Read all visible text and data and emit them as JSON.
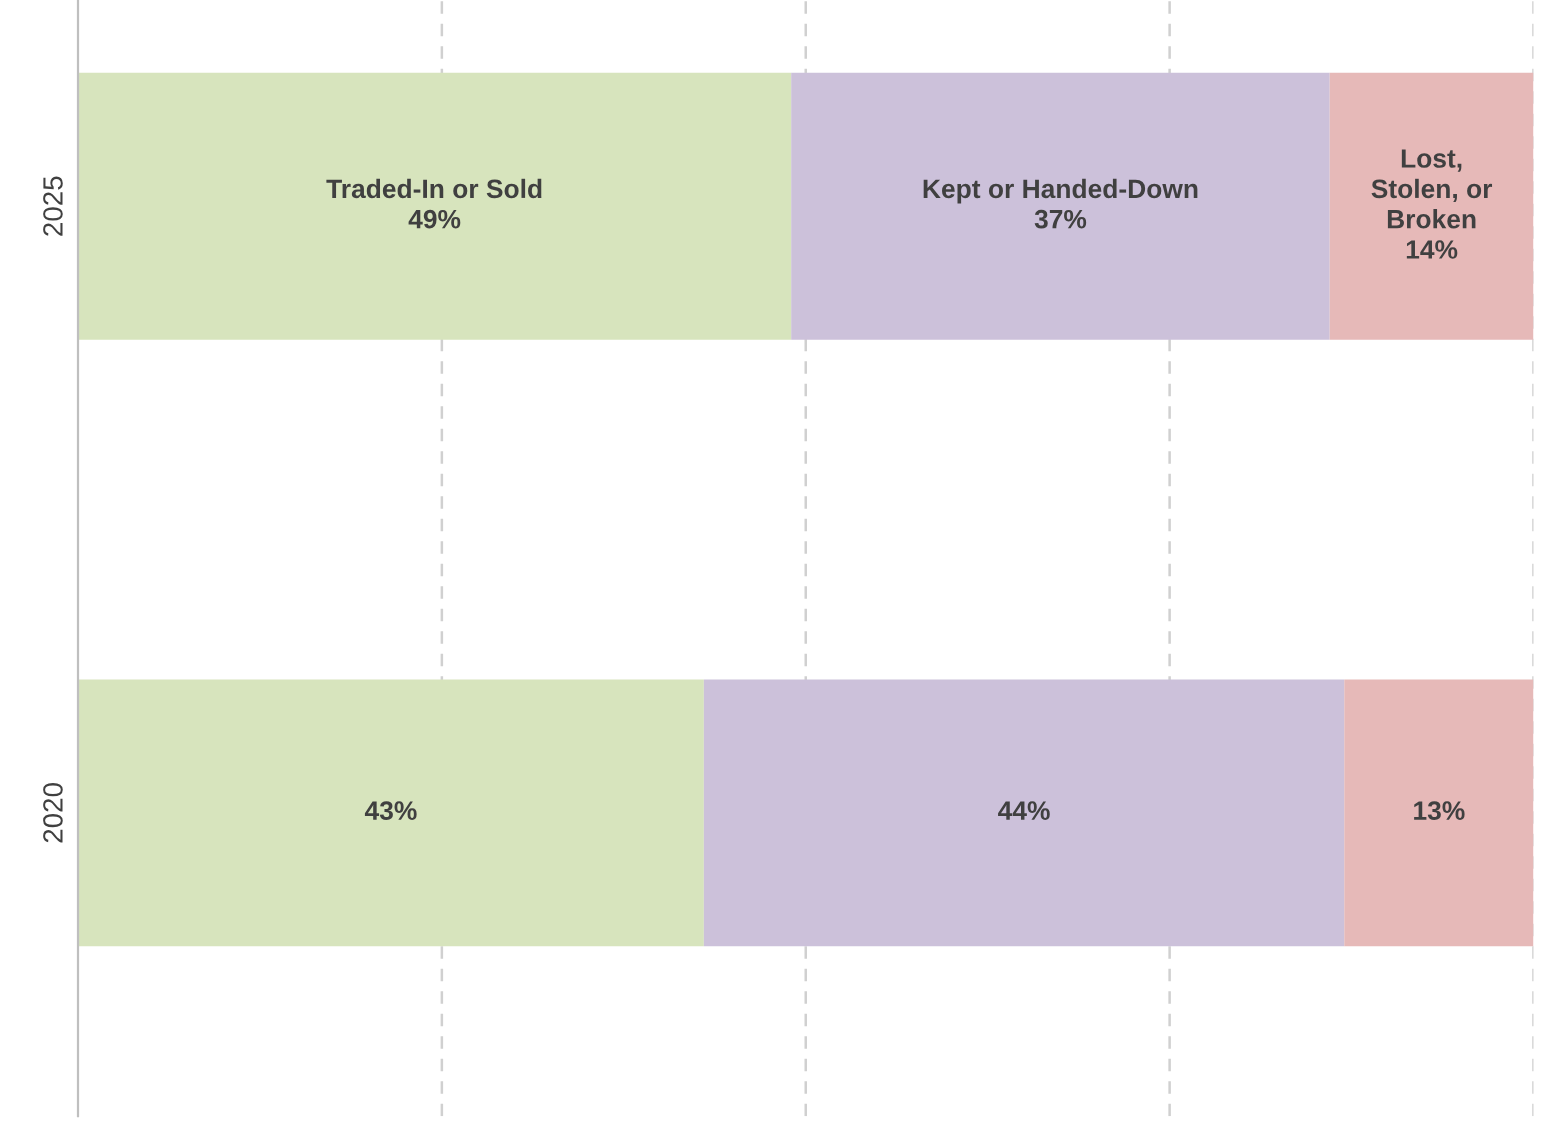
{
  "chart_data": {
    "type": "bar",
    "orientation": "horizontal",
    "stacked": true,
    "categories": [
      "2025",
      "2020"
    ],
    "xlim": [
      0,
      100
    ],
    "xticks": [
      {
        "value": 25,
        "label": null
      },
      {
        "value": 50,
        "label": null
      },
      {
        "value": 75,
        "label": null
      },
      {
        "value": 100,
        "label": null
      }
    ],
    "grid": "x",
    "series": [
      {
        "color": "#d7e4bd",
        "values": [
          49,
          43
        ],
        "value_labels": [
          "Traded-In or Sold\n49%",
          "43%"
        ]
      },
      {
        "color": "#ccc1da",
        "values": [
          37,
          44
        ],
        "value_labels": [
          "Kept or Handed-Down\n37%",
          "44%"
        ]
      },
      {
        "color": "#e6b9b8",
        "values": [
          14,
          13
        ],
        "value_labels": [
          "Lost,\nStolen, or\nBroken\n14%",
          "13%"
        ]
      }
    ]
  }
}
